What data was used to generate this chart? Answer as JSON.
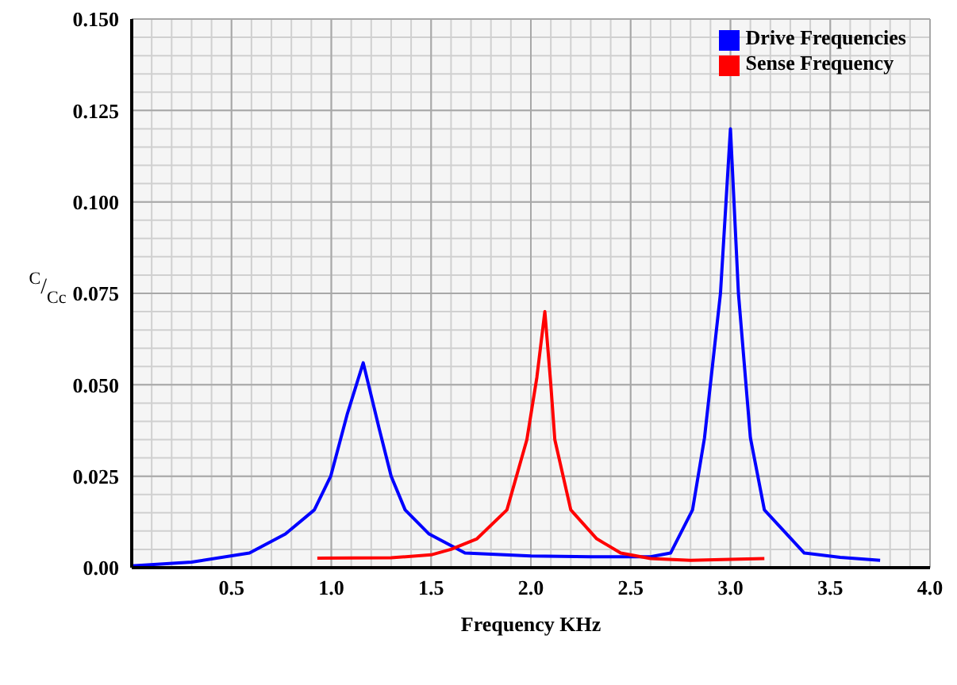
{
  "chart_data": {
    "type": "line",
    "xlabel": "Frequency KHz",
    "ylabel": "$^{C}$/$_{Cc}$",
    "xlim": [
      0,
      4.0
    ],
    "xticks": [
      {
        "value": 0,
        "label": null
      },
      0.5,
      {
        "value": 1.0,
        "label": "1.0"
      },
      1.5,
      {
        "value": 2.0,
        "label": "2.0"
      },
      2.5,
      {
        "value": 3.0,
        "label": "3.0"
      },
      3.5,
      {
        "value": 4.0,
        "label": "4.0"
      }
    ],
    "ylim": [
      0,
      0.15
    ],
    "yticks": [
      {
        "value": 0,
        "label": "0.00"
      },
      0.025,
      {
        "value": 0.05,
        "label": "0.050"
      },
      0.075,
      {
        "value": 0.1,
        "label": "0.100"
      },
      0.125,
      {
        "value": 0.15,
        "label": "0.150"
      }
    ],
    "grid": true,
    "legend": "top right",
    "series": [
      {
        "name": "Drive Frequencies",
        "color": "#0000ff",
        "x": [
          0,
          0.3,
          0.59,
          0.77,
          0.915,
          0.997,
          1.08,
          1.16,
          1.24,
          1.3,
          1.37,
          1.49,
          1.67,
          2.0,
          2.3,
          2.6,
          2.7,
          2.81,
          2.87,
          2.95,
          3.0,
          3.04,
          3.1,
          3.17,
          3.37,
          3.55,
          3.75
        ],
        "values": [
          0.0005,
          0.0015,
          0.004,
          0.0092,
          0.0158,
          0.025,
          0.042,
          0.056,
          0.038,
          0.025,
          0.0158,
          0.0092,
          0.004,
          0.0032,
          0.003,
          0.003,
          0.004,
          0.0158,
          0.0355,
          0.075,
          0.12,
          0.075,
          0.0355,
          0.0158,
          0.004,
          0.0028,
          0.002
        ]
      },
      {
        "name": "Sense Frequency",
        "color": "#ff0000",
        "x": [
          0.93,
          1.3,
          1.5,
          1.6,
          1.73,
          1.88,
          1.98,
          2.03,
          2.07,
          2.1,
          2.12,
          2.2,
          2.33,
          2.45,
          2.6,
          2.8,
          3.0,
          3.17
        ],
        "values": [
          0.0026,
          0.0027,
          0.0035,
          0.005,
          0.0079,
          0.0158,
          0.035,
          0.052,
          0.07,
          0.05,
          0.035,
          0.0158,
          0.0079,
          0.004,
          0.0025,
          0.002,
          0.0023,
          0.0025
        ]
      }
    ]
  }
}
